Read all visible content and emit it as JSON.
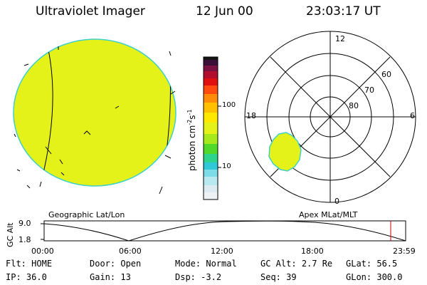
{
  "header": {
    "title": "Ultraviolet Imager",
    "date": "12 Jun 00",
    "time": "23:03:17 UT"
  },
  "colorbar": {
    "unit_label": "photon cm",
    "unit_exp1": "-2",
    "unit_s": "s",
    "unit_exp2": "-1",
    "tick_high": "100",
    "tick_low": "10"
  },
  "polar_plot": {
    "mlt_labels": [
      "12",
      "6",
      "0",
      "18"
    ],
    "lat_labels": [
      "60",
      "70",
      "80"
    ]
  },
  "panel_labels": {
    "left": "Geographic Lat/Lon",
    "right": "Apex MLat/MLT"
  },
  "altitude_plot": {
    "ylabel": "GC Alt",
    "ytick_top": "9.0",
    "ytick_bottom": "1.8",
    "xticks": [
      "00:00",
      "06:00",
      "12:00",
      "18:00",
      "23:59"
    ]
  },
  "info": {
    "flt_label": "Flt:",
    "flt_value": "HOME",
    "ip_label": "IP:",
    "ip_value": "36.0",
    "door_label": "Door:",
    "door_value": "Open",
    "gain_label": "Gain:",
    "gain_value": "13",
    "mode_label": "Mode:",
    "mode_value": "Normal",
    "dsp_label": "Dsp:",
    "dsp_value": "-3.2",
    "gcalt_label": "GC Alt:",
    "gcalt_value": "2.7 Re",
    "seq_label": "Seq:",
    "seq_value": "39",
    "glat_label": "GLat:",
    "glat_value": "56.5",
    "glon_label": "GLon:",
    "glon_value": "300.0"
  },
  "colors": {
    "emission": "#e4f21a",
    "edge": "#3fd0c8",
    "marker": "#cc0000"
  }
}
